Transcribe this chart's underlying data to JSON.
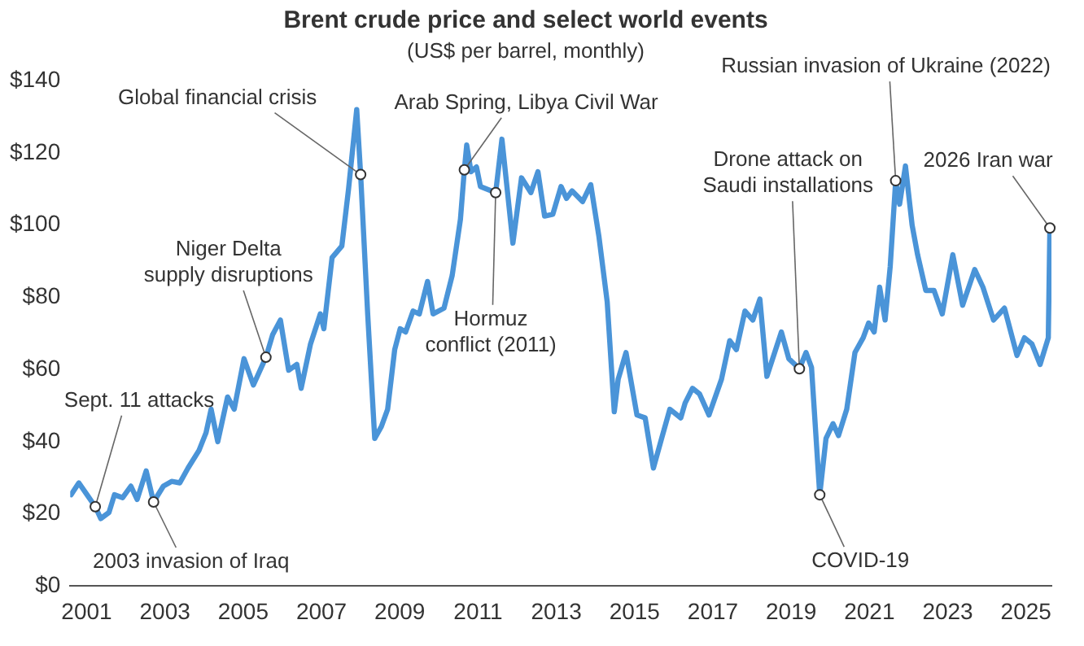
{
  "chart_data": {
    "type": "line",
    "title": "Brent crude price and select world events",
    "subtitle": "(US$ per barrel, monthly)",
    "x": [
      2001.1,
      2001.3,
      2001.51,
      2001.72,
      2001.86,
      2002.07,
      2002.21,
      2002.42,
      2002.63,
      2002.79,
      2003.02,
      2003.21,
      2003.46,
      2003.67,
      2003.88,
      2004.09,
      2004.37,
      2004.55,
      2004.68,
      2004.85,
      2005.1,
      2005.27,
      2005.52,
      2005.76,
      2006.08,
      2006.25,
      2006.45,
      2006.66,
      2006.87,
      2006.98,
      2007.22,
      2007.47,
      2007.56,
      2007.77,
      2008.02,
      2008.19,
      2008.4,
      2008.5,
      2008.68,
      2008.86,
      2009.03,
      2009.19,
      2009.37,
      2009.51,
      2009.65,
      2009.84,
      2010.0,
      2010.21,
      2010.35,
      2010.63,
      2010.84,
      2011.05,
      2011.15,
      2011.21,
      2011.32,
      2011.46,
      2011.56,
      2011.95,
      2012.11,
      2012.39,
      2012.61,
      2012.85,
      2013.03,
      2013.2,
      2013.41,
      2013.62,
      2013.76,
      2013.9,
      2014.17,
      2014.38,
      2014.59,
      2014.8,
      2014.98,
      2015.08,
      2015.28,
      2015.56,
      2015.77,
      2015.98,
      2016.19,
      2016.4,
      2016.68,
      2016.79,
      2016.98,
      2017.16,
      2017.4,
      2017.72,
      2017.93,
      2018.1,
      2018.32,
      2018.52,
      2018.7,
      2018.88,
      2019.25,
      2019.44,
      2019.71,
      2019.88,
      2020.02,
      2020.23,
      2020.39,
      2020.57,
      2020.71,
      2020.92,
      2021.13,
      2021.34,
      2021.48,
      2021.62,
      2021.76,
      2021.9,
      2022.03,
      2022.17,
      2022.27,
      2022.42,
      2022.59,
      2022.73,
      2022.94,
      2023.15,
      2023.36,
      2023.63,
      2023.88,
      2024.19,
      2024.4,
      2024.67,
      2024.95,
      2025.27,
      2025.46,
      2025.65,
      2025.86,
      2026.07,
      2026.11
    ],
    "values": [
      25.3,
      28.6,
      25.3,
      22,
      18.7,
      20.4,
      25.3,
      24.5,
      27.7,
      24,
      31.9,
      23.3,
      27.7,
      29,
      28.6,
      32.7,
      37.6,
      42.5,
      49,
      40,
      52.4,
      49,
      63,
      55.7,
      63.4,
      69.6,
      73.7,
      59.8,
      61.4,
      54.8,
      67.1,
      75.4,
      71.3,
      91,
      94.2,
      109.9,
      132,
      114,
      75.4,
      40.9,
      44.2,
      49,
      65.5,
      71.3,
      70.4,
      76.2,
      75.4,
      84.4,
      75.4,
      77,
      86.1,
      101.6,
      115.3,
      122.2,
      114.8,
      116.1,
      110.7,
      109,
      123.8,
      95,
      113.1,
      109,
      114.8,
      102.5,
      103,
      110.7,
      107.4,
      109.5,
      106.5,
      111.2,
      96.7,
      78.7,
      48.3,
      57.3,
      64.7,
      47.4,
      46.6,
      32.7,
      40.9,
      49,
      46.6,
      50.7,
      54.8,
      53.2,
      47.4,
      57.3,
      68,
      65.5,
      76.2,
      73.7,
      79.5,
      58.1,
      70.4,
      63,
      60.2,
      64.7,
      60.6,
      25.3,
      40.9,
      45,
      41.7,
      49,
      64.7,
      68.8,
      72.9,
      70.4,
      82.8,
      73.7,
      88.5,
      112.3,
      105.8,
      116.4,
      100,
      91.8,
      81.9,
      81.9,
      75.4,
      91.8,
      77.8,
      87.7,
      82.8,
      73.7,
      77,
      63.9,
      68.8,
      67.1,
      61.4,
      68.8,
      99.2
    ],
    "color": "#4a94d8",
    "marker": "none",
    "line_style": "solid",
    "legend": false,
    "grid": false,
    "xlim": [
      2001.08,
      2026.15
    ],
    "xticks": [
      {
        "value": 2001.5,
        "label": "2001"
      },
      {
        "value": 2003.5,
        "label": "2003"
      },
      {
        "value": 2005.5,
        "label": "2005"
      },
      {
        "value": 2007.5,
        "label": "2007"
      },
      {
        "value": 2009.5,
        "label": "2009"
      },
      {
        "value": 2011.5,
        "label": "2011"
      },
      {
        "value": 2013.5,
        "label": "2013"
      },
      {
        "value": 2015.5,
        "label": "2015"
      },
      {
        "value": 2017.5,
        "label": "2017"
      },
      {
        "value": 2019.5,
        "label": "2019"
      },
      {
        "value": 2021.5,
        "label": "2021"
      },
      {
        "value": 2023.5,
        "label": "2023"
      },
      {
        "value": 2025.5,
        "label": "2025"
      }
    ],
    "ylim": [
      0,
      140
    ],
    "yticks": [
      {
        "value": 0,
        "label": "$0"
      },
      {
        "value": 20,
        "label": "$20"
      },
      {
        "value": 40,
        "label": "$40"
      },
      {
        "value": 60,
        "label": "$60"
      },
      {
        "value": 80,
        "label": "$80"
      },
      {
        "value": 100,
        "label": "$100"
      },
      {
        "value": 120,
        "label": "$120"
      },
      {
        "value": 140,
        "label": "$140"
      }
    ],
    "annotations": [
      {
        "text": "Sept. 11 attacks",
        "x": 2001.72,
        "y": 22
      },
      {
        "text": "2003 invasion of Iraq",
        "x": 2003.21,
        "y": 23.3
      },
      {
        "text": "Niger Delta\nsupply disruptions",
        "x": 2006.08,
        "y": 63.4
      },
      {
        "text": "Global financial crisis",
        "x": 2008.5,
        "y": 114
      },
      {
        "text": "Arab Spring, Libya Civil War",
        "x": 2011.15,
        "y": 115.3
      },
      {
        "text": "Hormuz\nconflict (2011)",
        "x": 2011.95,
        "y": 109
      },
      {
        "text": "Drone attack on\nSaudi installations",
        "x": 2019.71,
        "y": 60.2
      },
      {
        "text": "COVID-19",
        "x": 2020.23,
        "y": 25.3
      },
      {
        "text": "Russian invasion of Ukraine (2022)",
        "x": 2022.17,
        "y": 112.3
      },
      {
        "text": "2026 Iran war",
        "x": 2026.11,
        "y": 99.2
      }
    ]
  }
}
